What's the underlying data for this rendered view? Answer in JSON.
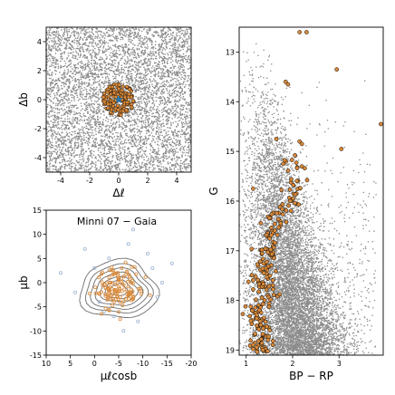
{
  "figure": {
    "background": "#ffffff"
  },
  "chart_data": [
    {
      "id": "sky",
      "type": "scatter",
      "xlabel": "Δℓ",
      "ylabel": "Δb",
      "xlim": [
        -5,
        5
      ],
      "ylim": [
        -5,
        5
      ],
      "xticks": [
        -4,
        -2,
        0,
        2,
        4
      ],
      "yticks": [
        -4,
        -2,
        0,
        2,
        4
      ],
      "grid": false,
      "series": [
        {
          "role": "field stars",
          "color": "#8c8c8c",
          "distribution": "uniform over full panel",
          "n_approx": 5200
        },
        {
          "role": "cluster members",
          "color": "#d98a3b",
          "edgecolor": "#000000",
          "center": [
            0,
            0
          ],
          "radius": 1.1,
          "n_approx": 140
        },
        {
          "role": "cluster center",
          "color": "#1f77b4",
          "marker": "star",
          "x": 0,
          "y": 0
        }
      ]
    },
    {
      "id": "proper_motion",
      "type": "scatter",
      "annotation": "Minni 07  −  Gaia",
      "xlabel": "μℓcosb",
      "ylabel": "μb",
      "xlim": [
        10,
        -20
      ],
      "ylim": [
        -15,
        15
      ],
      "xticks": [
        10,
        5,
        0,
        -5,
        -10,
        -15,
        -20
      ],
      "yticks": [
        -15,
        -10,
        -5,
        0,
        5,
        10,
        15
      ],
      "grid": false,
      "series": [
        {
          "role": "field density contours",
          "color": "#6e6e6e",
          "center": [
            -5,
            -1.5
          ],
          "levels_radii": [
            [
              8,
              6
            ],
            [
              6.8,
              5
            ],
            [
              5.8,
              4.2
            ],
            [
              4.8,
              3.4
            ],
            [
              3.8,
              2.6
            ],
            [
              2.8,
              1.9
            ],
            [
              1.8,
              1.2
            ]
          ]
        },
        {
          "role": "field stars",
          "color": "#9db3cf",
          "x": [
            -8,
            2,
            -12,
            7,
            -2,
            -14,
            -9,
            -3,
            4,
            -6,
            -16,
            -1,
            -11,
            -4,
            -7,
            0,
            -13,
            -5
          ],
          "y": [
            11,
            7,
            3,
            2,
            -6,
            0,
            -8,
            5,
            -2,
            -10,
            4,
            -4,
            6,
            -7,
            8,
            3,
            -3,
            1
          ]
        },
        {
          "role": "cluster members",
          "color": "#d98a3b",
          "center": [
            -5,
            -1.5
          ],
          "spread": [
            2.5,
            2
          ],
          "n_approx": 130
        }
      ]
    },
    {
      "id": "cmd",
      "type": "scatter",
      "xlabel": "BP − RP",
      "ylabel": "G",
      "xlim": [
        0.85,
        3.95
      ],
      "ylim": [
        19.1,
        12.5
      ],
      "xticks": [
        1,
        2,
        3
      ],
      "yticks": [
        13,
        14,
        15,
        16,
        17,
        18,
        19
      ],
      "grid": false,
      "series": [
        {
          "role": "field stars",
          "color": "#8c8c8c",
          "n_approx": 9000
        },
        {
          "role": "cluster members",
          "color": "#d98a3b",
          "edgecolor": "#000000",
          "n_approx": 220
        }
      ]
    }
  ]
}
